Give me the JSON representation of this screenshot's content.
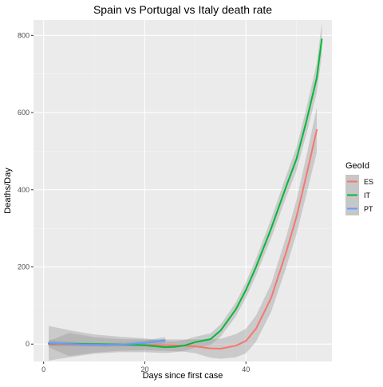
{
  "chart_data": {
    "type": "line",
    "title": "Spain vs Portugal vs Italy death rate",
    "xlabel": "Days since first case",
    "ylabel": "Deaths/Day",
    "xlim": [
      -2,
      57
    ],
    "ylim": [
      -45,
      840
    ],
    "x_ticks": [
      0,
      20,
      40
    ],
    "y_ticks": [
      0,
      200,
      400,
      600,
      800
    ],
    "grid": true,
    "legend": {
      "title": "GeoId",
      "position": "right"
    },
    "series": [
      {
        "name": "ES",
        "color": "#F8766D",
        "x": [
          1,
          5,
          10,
          15,
          20,
          25,
          28,
          30,
          33,
          35,
          38,
          40,
          42,
          45,
          48,
          50,
          52,
          54
        ],
        "y": [
          0,
          -1,
          -2,
          -2,
          -2,
          -3,
          -4,
          -6,
          -11,
          -12,
          -4,
          8,
          40,
          120,
          240,
          330,
          440,
          555
        ],
        "ci": [
          8,
          30,
          20,
          15,
          14,
          15,
          16,
          18,
          24,
          26,
          30,
          32,
          34,
          36,
          40,
          44,
          50,
          58
        ]
      },
      {
        "name": "IT",
        "color": "#00BA38",
        "x": [
          1,
          5,
          10,
          15,
          20,
          24,
          26,
          28,
          30,
          33,
          35,
          38,
          40,
          42,
          45,
          48,
          50,
          52,
          54,
          55
        ],
        "y": [
          2,
          1,
          0,
          -1,
          -3,
          -8,
          -7,
          -3,
          5,
          13,
          35,
          90,
          140,
          200,
          300,
          410,
          480,
          580,
          690,
          790
        ],
        "ci": [
          45,
          35,
          25,
          20,
          18,
          15,
          14,
          14,
          14,
          15,
          16,
          18,
          20,
          22,
          25,
          28,
          30,
          34,
          38,
          42
        ]
      },
      {
        "name": "PT",
        "color": "#619CFF",
        "x": [
          1,
          4,
          8,
          12,
          16,
          20,
          24
        ],
        "y": [
          3,
          1,
          -1,
          -2,
          -1,
          3,
          10
        ],
        "ci": [
          8,
          6,
          5,
          5,
          5,
          6,
          8
        ]
      }
    ]
  }
}
